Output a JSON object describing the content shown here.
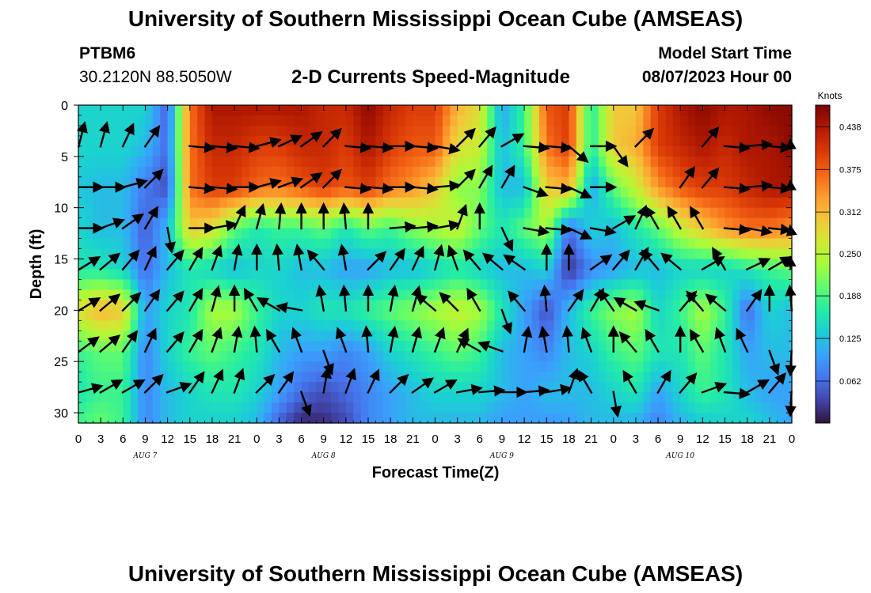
{
  "header": {
    "title": "University of Southern Mississippi Ocean Cube (AMSEAS)",
    "station_id": "PTBM6",
    "station_coords": "30.2120N  88.5050W",
    "subtitle": "2-D Currents Speed-Magnitude",
    "model_start_label": "Model Start Time",
    "model_start_value": "08/07/2023 Hour 00"
  },
  "footer": {
    "title": "University of Southern Mississippi Ocean Cube (AMSEAS)"
  },
  "chart_data": {
    "type": "heatmap",
    "xlabel": "Forecast Time(Z)",
    "ylabel": "Depth (ft)",
    "x_hours": [
      0,
      3,
      6,
      9,
      12,
      15,
      18,
      21,
      24,
      27,
      30,
      33,
      36,
      39,
      42,
      45,
      48,
      51,
      54,
      57,
      60,
      63,
      66,
      69,
      72,
      75,
      78,
      81,
      84,
      87,
      90,
      93,
      96
    ],
    "x_tick_labels": [
      "0",
      "3",
      "6",
      "9",
      "12",
      "15",
      "18",
      "21",
      "0",
      "3",
      "6",
      "9",
      "12",
      "15",
      "18",
      "21",
      "0",
      "3",
      "6",
      "9",
      "12",
      "15",
      "18",
      "21",
      "0",
      "3",
      "6",
      "9",
      "12",
      "15",
      "18",
      "21",
      "0"
    ],
    "day_labels": [
      {
        "hour": 9,
        "text": "AUG 7"
      },
      {
        "hour": 33,
        "text": "AUG 8"
      },
      {
        "hour": 57,
        "text": "AUG 9"
      },
      {
        "hour": 81,
        "text": "AUG 10"
      }
    ],
    "ylim": [
      31,
      0
    ],
    "y_ticks": [
      0,
      5,
      10,
      15,
      20,
      25,
      30
    ],
    "xlim": [
      0,
      96
    ],
    "colorbar": {
      "unit_label": "Knots",
      "range": [
        0,
        0.47
      ],
      "ticks": [
        "0.438",
        "0.375",
        "0.312",
        "0.250",
        "0.188",
        "0.125",
        "0.062"
      ],
      "tick_values": [
        0.438,
        0.375,
        0.312,
        0.25,
        0.188,
        0.125,
        0.062
      ],
      "colormap": [
        "#30123b",
        "#4145ab",
        "#4675ed",
        "#39a2fc",
        "#1bcfd4",
        "#24eca6",
        "#61fc6c",
        "#a4fc3b",
        "#d1e834",
        "#f3c63a",
        "#fe9b2d",
        "#f36315",
        "#d93806",
        "#b11901",
        "#7a0403"
      ]
    },
    "depths": [
      0,
      4,
      8,
      12,
      16,
      20,
      24,
      28,
      30.5
    ],
    "speed_grid": [
      [
        0.14,
        0.14,
        0.14,
        0.14,
        0.05,
        0.36,
        0.44,
        0.44,
        0.44,
        0.44,
        0.44,
        0.42,
        0.42,
        0.46,
        0.42,
        0.4,
        0.4,
        0.32,
        0.28,
        0.1,
        0.18,
        0.38,
        0.4,
        0.16,
        0.3,
        0.3,
        0.4,
        0.44,
        0.46,
        0.44,
        0.44,
        0.46,
        0.46
      ],
      [
        0.14,
        0.14,
        0.14,
        0.12,
        0.06,
        0.36,
        0.42,
        0.42,
        0.4,
        0.4,
        0.42,
        0.42,
        0.4,
        0.44,
        0.4,
        0.38,
        0.38,
        0.28,
        0.26,
        0.12,
        0.18,
        0.36,
        0.4,
        0.16,
        0.3,
        0.32,
        0.4,
        0.42,
        0.44,
        0.42,
        0.44,
        0.44,
        0.46
      ],
      [
        0.13,
        0.12,
        0.12,
        0.07,
        0.04,
        0.36,
        0.4,
        0.4,
        0.37,
        0.36,
        0.38,
        0.4,
        0.38,
        0.4,
        0.36,
        0.34,
        0.3,
        0.22,
        0.22,
        0.12,
        0.12,
        0.3,
        0.32,
        0.1,
        0.2,
        0.26,
        0.34,
        0.38,
        0.4,
        0.4,
        0.42,
        0.44,
        0.44
      ],
      [
        0.14,
        0.12,
        0.12,
        0.05,
        0.12,
        0.3,
        0.28,
        0.2,
        0.16,
        0.18,
        0.18,
        0.2,
        0.16,
        0.2,
        0.18,
        0.22,
        0.24,
        0.26,
        0.2,
        0.16,
        0.2,
        0.24,
        0.06,
        0.14,
        0.12,
        0.16,
        0.2,
        0.26,
        0.3,
        0.34,
        0.36,
        0.36,
        0.34
      ],
      [
        0.16,
        0.16,
        0.14,
        0.06,
        0.12,
        0.16,
        0.14,
        0.12,
        0.14,
        0.14,
        0.12,
        0.12,
        0.1,
        0.1,
        0.12,
        0.12,
        0.14,
        0.16,
        0.14,
        0.12,
        0.12,
        0.14,
        0.02,
        0.08,
        0.1,
        0.12,
        0.12,
        0.14,
        0.14,
        0.14,
        0.16,
        0.18,
        0.2
      ],
      [
        0.28,
        0.32,
        0.3,
        0.1,
        0.14,
        0.16,
        0.24,
        0.24,
        0.18,
        0.14,
        0.14,
        0.16,
        0.16,
        0.18,
        0.2,
        0.22,
        0.24,
        0.26,
        0.24,
        0.16,
        0.1,
        0.04,
        0.12,
        0.18,
        0.22,
        0.24,
        0.14,
        0.18,
        0.24,
        0.18,
        0.06,
        0.14,
        0.12
      ],
      [
        0.18,
        0.2,
        0.2,
        0.08,
        0.14,
        0.18,
        0.2,
        0.18,
        0.16,
        0.12,
        0.1,
        0.1,
        0.08,
        0.1,
        0.14,
        0.16,
        0.18,
        0.2,
        0.18,
        0.12,
        0.1,
        0.08,
        0.12,
        0.14,
        0.18,
        0.2,
        0.16,
        0.16,
        0.2,
        0.16,
        0.1,
        0.12,
        0.12
      ],
      [
        0.16,
        0.18,
        0.18,
        0.08,
        0.12,
        0.14,
        0.16,
        0.16,
        0.14,
        0.1,
        0.06,
        0.04,
        0.06,
        0.08,
        0.1,
        0.12,
        0.14,
        0.14,
        0.14,
        0.12,
        0.1,
        0.12,
        0.12,
        0.12,
        0.14,
        0.16,
        0.1,
        0.14,
        0.18,
        0.16,
        0.12,
        0.1,
        0.1
      ],
      [
        0.18,
        0.2,
        0.18,
        0.08,
        0.12,
        0.14,
        0.14,
        0.14,
        0.12,
        0.06,
        0.02,
        0.02,
        0.04,
        0.08,
        0.1,
        0.12,
        0.12,
        0.12,
        0.12,
        0.1,
        0.1,
        0.1,
        0.1,
        0.12,
        0.12,
        0.12,
        0.08,
        0.12,
        0.14,
        0.14,
        0.14,
        0.12,
        0.1
      ]
    ],
    "vector_rows": [
      {
        "depth": 4,
        "dirs": [
          15,
          15,
          25,
          35,
          null,
          95,
          95,
          95,
          75,
          65,
          55,
          45,
          95,
          95,
          90,
          95,
          100,
          45,
          40,
          60,
          95,
          95,
          130,
          90,
          145,
          45,
          null,
          null,
          40,
          95,
          85,
          95,
          75
        ]
      },
      {
        "depth": 8,
        "dirs": [
          90,
          90,
          75,
          45,
          null,
          95,
          95,
          90,
          75,
          70,
          55,
          45,
          95,
          95,
          90,
          95,
          85,
          45,
          30,
          30,
          110,
          95,
          115,
          90,
          null,
          null,
          null,
          35,
          40,
          95,
          85,
          95,
          75
        ]
      },
      {
        "depth": 12,
        "dirs": [
          90,
          70,
          55,
          30,
          170,
          90,
          80,
          25,
          15,
          5,
          0,
          0,
          355,
          0,
          85,
          85,
          80,
          20,
          0,
          155,
          100,
          95,
          115,
          100,
          60,
          25,
          330,
          330,
          330,
          95,
          100,
          95,
          85
        ]
      },
      {
        "depth": 16,
        "dirs": [
          60,
          50,
          40,
          25,
          40,
          30,
          20,
          10,
          0,
          355,
          350,
          320,
          350,
          45,
          35,
          25,
          15,
          340,
          320,
          310,
          305,
          0,
          0,
          55,
          40,
          30,
          320,
          310,
          60,
          330,
          65,
          60,
          60
        ]
      },
      {
        "depth": 20,
        "dirs": [
          60,
          50,
          45,
          35,
          40,
          30,
          15,
          0,
          330,
          300,
          280,
          350,
          355,
          0,
          10,
          15,
          310,
          315,
          330,
          160,
          320,
          355,
          35,
          30,
          325,
          300,
          290,
          40,
          320,
          310,
          35,
          0,
          355
        ]
      },
      {
        "depth": 24,
        "dirs": [
          55,
          50,
          35,
          25,
          40,
          30,
          20,
          10,
          355,
          330,
          340,
          160,
          340,
          355,
          10,
          15,
          20,
          25,
          300,
          290,
          10,
          350,
          355,
          340,
          0,
          320,
          330,
          0,
          330,
          340,
          335,
          160,
          170
        ]
      },
      {
        "depth": 28,
        "dirs": [
          75,
          60,
          60,
          45,
          70,
          35,
          25,
          20,
          45,
          35,
          160,
          10,
          20,
          25,
          45,
          55,
          60,
          80,
          85,
          90,
          85,
          80,
          20,
          330,
          170,
          330,
          30,
          40,
          70,
          95,
          60,
          40,
          165
        ]
      }
    ]
  }
}
